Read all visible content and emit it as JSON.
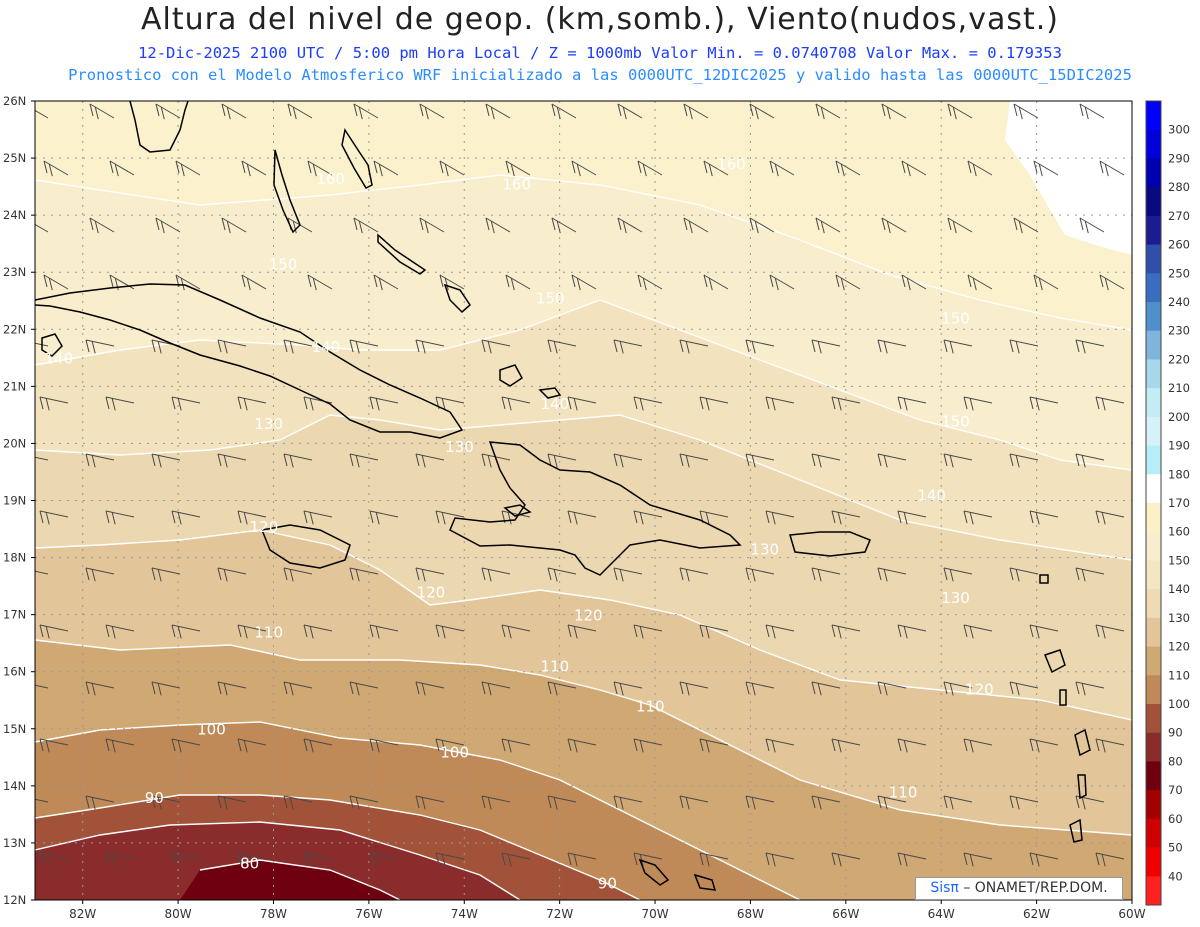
{
  "header": {
    "title": "Altura del nivel de geop. (km,somb.), Viento(nudos,vast.)",
    "subtitle_1": "12-Dic-2025  2100 UTC / 5:00 pm Hora Local / Z = 1000mb  Valor Min. = 0.0740708  Valor Max. = 0.179353",
    "subtitle_2": "Pronostico con el Modelo Atmosferico WRF inicializado a las 0000UTC_12DIC2025 y valido hasta las  0000UTC_15DIC2025"
  },
  "map": {
    "lon_range": [
      -83,
      -60
    ],
    "lat_range": [
      12,
      26
    ],
    "lon_ticks": [
      "82W",
      "80W",
      "78W",
      "76W",
      "74W",
      "72W",
      "70W",
      "68W",
      "66W",
      "64W",
      "62W",
      "60W"
    ],
    "lat_ticks": [
      "12N",
      "13N",
      "14N",
      "15N",
      "16N",
      "17N",
      "18N",
      "19N",
      "20N",
      "21N",
      "22N",
      "23N",
      "24N",
      "25N",
      "26N"
    ],
    "contour_labels": [
      {
        "text": "160",
        "lon": -76.8,
        "lat": 24.55
      },
      {
        "text": "160",
        "lon": -72.9,
        "lat": 24.45
      },
      {
        "text": "160",
        "lon": -68.4,
        "lat": 24.8
      },
      {
        "text": "150",
        "lon": -77.8,
        "lat": 23.05
      },
      {
        "text": "150",
        "lon": -72.2,
        "lat": 22.45
      },
      {
        "text": "150",
        "lon": -63.7,
        "lat": 22.1
      },
      {
        "text": "140",
        "lon": -82.5,
        "lat": 21.4
      },
      {
        "text": "140",
        "lon": -76.9,
        "lat": 21.6
      },
      {
        "text": "140",
        "lon": -72.1,
        "lat": 20.6
      },
      {
        "text": "150",
        "lon": -63.7,
        "lat": 20.3
      },
      {
        "text": "130",
        "lon": -78.1,
        "lat": 20.25
      },
      {
        "text": "130",
        "lon": -74.1,
        "lat": 19.85
      },
      {
        "text": "140",
        "lon": -64.2,
        "lat": 19.0
      },
      {
        "text": "120",
        "lon": -78.2,
        "lat": 18.45
      },
      {
        "text": "130",
        "lon": -67.7,
        "lat": 18.05
      },
      {
        "text": "120",
        "lon": -74.7,
        "lat": 17.3
      },
      {
        "text": "130",
        "lon": -63.7,
        "lat": 17.2
      },
      {
        "text": "120",
        "lon": -71.4,
        "lat": 16.9
      },
      {
        "text": "110",
        "lon": -78.1,
        "lat": 16.6
      },
      {
        "text": "110",
        "lon": -72.1,
        "lat": 16.0
      },
      {
        "text": "120",
        "lon": -63.2,
        "lat": 15.6
      },
      {
        "text": "110",
        "lon": -70.1,
        "lat": 15.3
      },
      {
        "text": "100",
        "lon": -79.3,
        "lat": 14.9
      },
      {
        "text": "100",
        "lon": -74.2,
        "lat": 14.5
      },
      {
        "text": "110",
        "lon": -64.8,
        "lat": 13.8
      },
      {
        "text": "90",
        "lon": -80.5,
        "lat": 13.7
      },
      {
        "text": "80",
        "lon": -78.5,
        "lat": 12.55
      },
      {
        "text": "90",
        "lon": -71.0,
        "lat": 12.2
      }
    ]
  },
  "colorbar": {
    "labels": [
      "300",
      "290",
      "280",
      "270",
      "260",
      "250",
      "240",
      "230",
      "220",
      "210",
      "200",
      "190",
      "180",
      "170",
      "160",
      "150",
      "140",
      "130",
      "120",
      "110",
      "100",
      "90",
      "80",
      "70",
      "60",
      "50",
      "40"
    ],
    "colors": [
      "#0000ff",
      "#0000dd",
      "#0000b0",
      "#0a0a80",
      "#1c1c90",
      "#2f4fa8",
      "#3a6cc0",
      "#4f8fcc",
      "#7fb4dd",
      "#a6d8ea",
      "#c4ecf4",
      "#d6f2f8",
      "#b6eef6",
      "#ffffff",
      "#fbf0c8",
      "#f8edcc",
      "#f5e6c3",
      "#eedbb5",
      "#e2c69a",
      "#cfa874",
      "#bf8a57",
      "#a15238",
      "#8b2c2c",
      "#6f0010",
      "#a30000",
      "#d10000",
      "#f10000",
      "#ff2020"
    ]
  },
  "credit": {
    "sis": "Sisπ",
    "text": "– ONAMET/REP.DOM."
  }
}
